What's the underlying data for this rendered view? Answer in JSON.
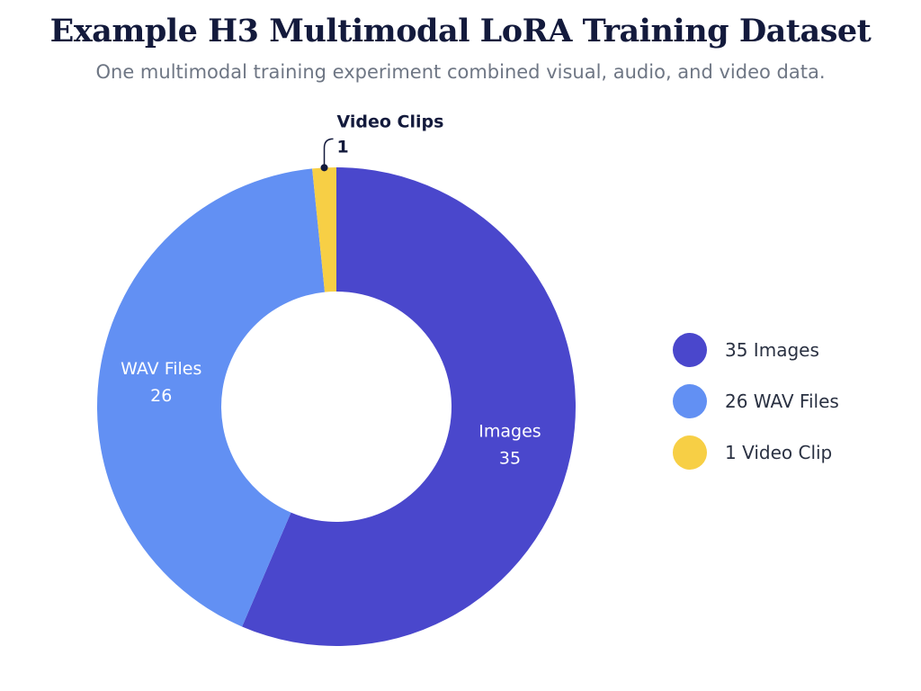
{
  "header": {
    "title": "Example H3 Multimodal LoRA Training Dataset",
    "subtitle": "One multimodal training experiment combined visual, audio, and video data."
  },
  "chart_data": {
    "type": "pie",
    "variant": "donut",
    "title": "Example H3 Multimodal LoRA Training Dataset",
    "subtitle": "One multimodal training experiment combined visual, audio, and video data.",
    "slices": [
      {
        "name": "Images",
        "value": 35,
        "color": "#4a47cc",
        "label_style": "inside"
      },
      {
        "name": "WAV Files",
        "value": 26,
        "color": "#6290f3",
        "label_style": "inside"
      },
      {
        "name": "Video Clips",
        "value": 1,
        "color": "#f7cf45",
        "label_style": "callout"
      }
    ],
    "legend": {
      "position": "right",
      "entries": [
        {
          "label": "35 Images",
          "color": "#4a47cc"
        },
        {
          "label": "26 WAV Files",
          "color": "#6290f3"
        },
        {
          "label": "1 Video Clip",
          "color": "#f7cf45"
        }
      ]
    }
  }
}
